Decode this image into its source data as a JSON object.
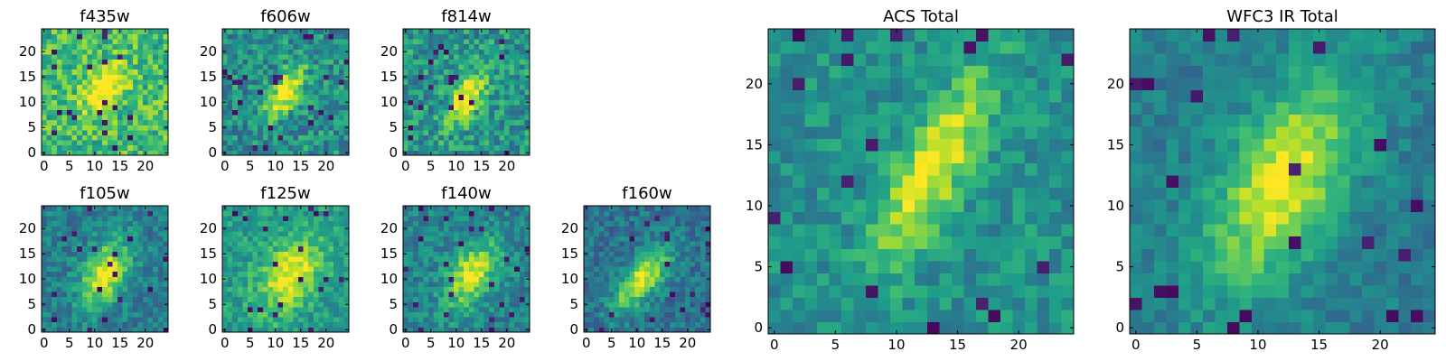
{
  "chart_data": [
    {
      "type": "heatmap",
      "title": "f435w",
      "xlim": [
        0,
        24
      ],
      "ylim": [
        0,
        24
      ],
      "xticks": [
        "0",
        "5",
        "10",
        "15",
        "20"
      ],
      "yticks": [
        "0",
        "5",
        "10",
        "15",
        "20"
      ],
      "colormap": "viridis",
      "blob": {
        "center": [
          12,
          13
        ],
        "sigma_major": 3.5,
        "sigma_minor": 2.2,
        "angle_deg": 50,
        "amplitude": 0.45
      },
      "background": 0.68,
      "noise": 0.2,
      "seed": 11
    },
    {
      "type": "heatmap",
      "title": "f606w",
      "xlim": [
        0,
        24
      ],
      "ylim": [
        0,
        24
      ],
      "xticks": [
        "0",
        "5",
        "10",
        "15",
        "20"
      ],
      "yticks": [
        "0",
        "5",
        "10",
        "15",
        "20"
      ],
      "colormap": "viridis",
      "blob": {
        "center": [
          12,
          12
        ],
        "sigma_major": 4.0,
        "sigma_minor": 1.6,
        "angle_deg": 60,
        "amplitude": 0.6
      },
      "background": 0.5,
      "noise": 0.2,
      "seed": 23
    },
    {
      "type": "heatmap",
      "title": "f814w",
      "xlim": [
        0,
        24
      ],
      "ylim": [
        0,
        24
      ],
      "xticks": [
        "0",
        "5",
        "10",
        "15",
        "20"
      ],
      "yticks": [
        "0",
        "5",
        "10",
        "15",
        "20"
      ],
      "colormap": "viridis",
      "blob": {
        "center": [
          12,
          11
        ],
        "sigma_major": 4.0,
        "sigma_minor": 1.8,
        "angle_deg": 60,
        "amplitude": 0.55
      },
      "background": 0.52,
      "noise": 0.2,
      "seed": 37
    },
    {
      "type": "heatmap",
      "title": "f105w",
      "xlim": [
        0,
        24
      ],
      "ylim": [
        0,
        24
      ],
      "xticks": [
        "0",
        "5",
        "10",
        "15",
        "20"
      ],
      "yticks": [
        "0",
        "5",
        "10",
        "15",
        "20"
      ],
      "colormap": "viridis",
      "blob": {
        "center": [
          12,
          11
        ],
        "sigma_major": 5.0,
        "sigma_minor": 2.8,
        "angle_deg": 65,
        "amplitude": 0.55
      },
      "background": 0.42,
      "noise": 0.14,
      "seed": 41
    },
    {
      "type": "heatmap",
      "title": "f125w",
      "xlim": [
        0,
        24
      ],
      "ylim": [
        0,
        24
      ],
      "xticks": [
        "0",
        "5",
        "10",
        "15",
        "20"
      ],
      "yticks": [
        "0",
        "5",
        "10",
        "15",
        "20"
      ],
      "colormap": "viridis",
      "blob": {
        "center": [
          13,
          11
        ],
        "sigma_major": 5.5,
        "sigma_minor": 3.5,
        "angle_deg": 55,
        "amplitude": 0.45
      },
      "background": 0.55,
      "noise": 0.14,
      "seed": 53
    },
    {
      "type": "heatmap",
      "title": "f140w",
      "xlim": [
        0,
        24
      ],
      "ylim": [
        0,
        24
      ],
      "xticks": [
        "0",
        "5",
        "10",
        "15",
        "20"
      ],
      "yticks": [
        "0",
        "5",
        "10",
        "15",
        "20"
      ],
      "colormap": "viridis",
      "blob": {
        "center": [
          13,
          11
        ],
        "sigma_major": 5.0,
        "sigma_minor": 2.8,
        "angle_deg": 60,
        "amplitude": 0.5
      },
      "background": 0.45,
      "noise": 0.14,
      "seed": 67
    },
    {
      "type": "heatmap",
      "title": "f160w",
      "xlim": [
        0,
        24
      ],
      "ylim": [
        0,
        24
      ],
      "xticks": [
        "0",
        "5",
        "10",
        "15",
        "20"
      ],
      "yticks": [
        "0",
        "5",
        "10",
        "15",
        "20"
      ],
      "colormap": "viridis",
      "blob": {
        "center": [
          11,
          10
        ],
        "sigma_major": 5.0,
        "sigma_minor": 2.2,
        "angle_deg": 50,
        "amplitude": 0.6
      },
      "background": 0.38,
      "noise": 0.14,
      "seed": 79
    },
    {
      "type": "heatmap",
      "title": "ACS Total",
      "xlim": [
        0,
        24
      ],
      "ylim": [
        0,
        24
      ],
      "xticks": [
        "0",
        "5",
        "10",
        "15",
        "20"
      ],
      "yticks": [
        "0",
        "5",
        "10",
        "15",
        "20"
      ],
      "colormap": "viridis",
      "blob": {
        "center": [
          13,
          13
        ],
        "sigma_major": 6.0,
        "sigma_minor": 1.8,
        "angle_deg": 62,
        "amplitude": 0.5
      },
      "background": 0.5,
      "noise": 0.13,
      "seed": 97
    },
    {
      "type": "heatmap",
      "title": "WFC3 IR Total",
      "xlim": [
        0,
        24
      ],
      "ylim": [
        0,
        24
      ],
      "xticks": [
        "0",
        "5",
        "10",
        "15",
        "20"
      ],
      "yticks": [
        "0",
        "5",
        "10",
        "15",
        "20"
      ],
      "colormap": "viridis",
      "blob": {
        "center": [
          12,
          12
        ],
        "sigma_major": 6.5,
        "sigma_minor": 3.2,
        "angle_deg": 62,
        "amplitude": 0.55
      },
      "background": 0.42,
      "noise": 0.1,
      "seed": 113
    }
  ]
}
